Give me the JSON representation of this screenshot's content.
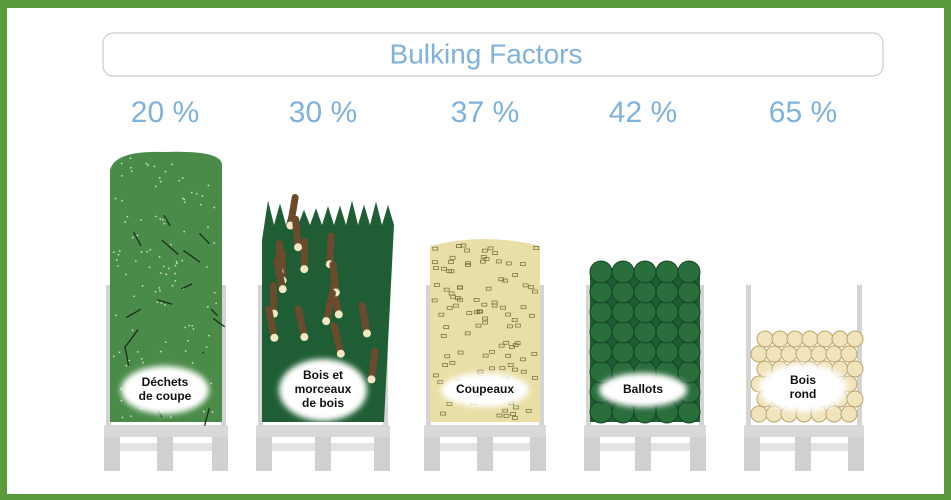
{
  "header": {
    "title": "Bulking Factors"
  },
  "items": [
    {
      "percent": "20 %",
      "label": [
        "Déchets",
        "de coupe"
      ]
    },
    {
      "percent": "30 %",
      "label": [
        "Bois et",
        "morceaux",
        "de bois"
      ]
    },
    {
      "percent": "37 %",
      "label": [
        "Coupeaux"
      ]
    },
    {
      "percent": "42 %",
      "label": [
        "Ballots"
      ]
    },
    {
      "percent": "65 %",
      "label": [
        "Bois",
        "rond"
      ]
    }
  ]
}
